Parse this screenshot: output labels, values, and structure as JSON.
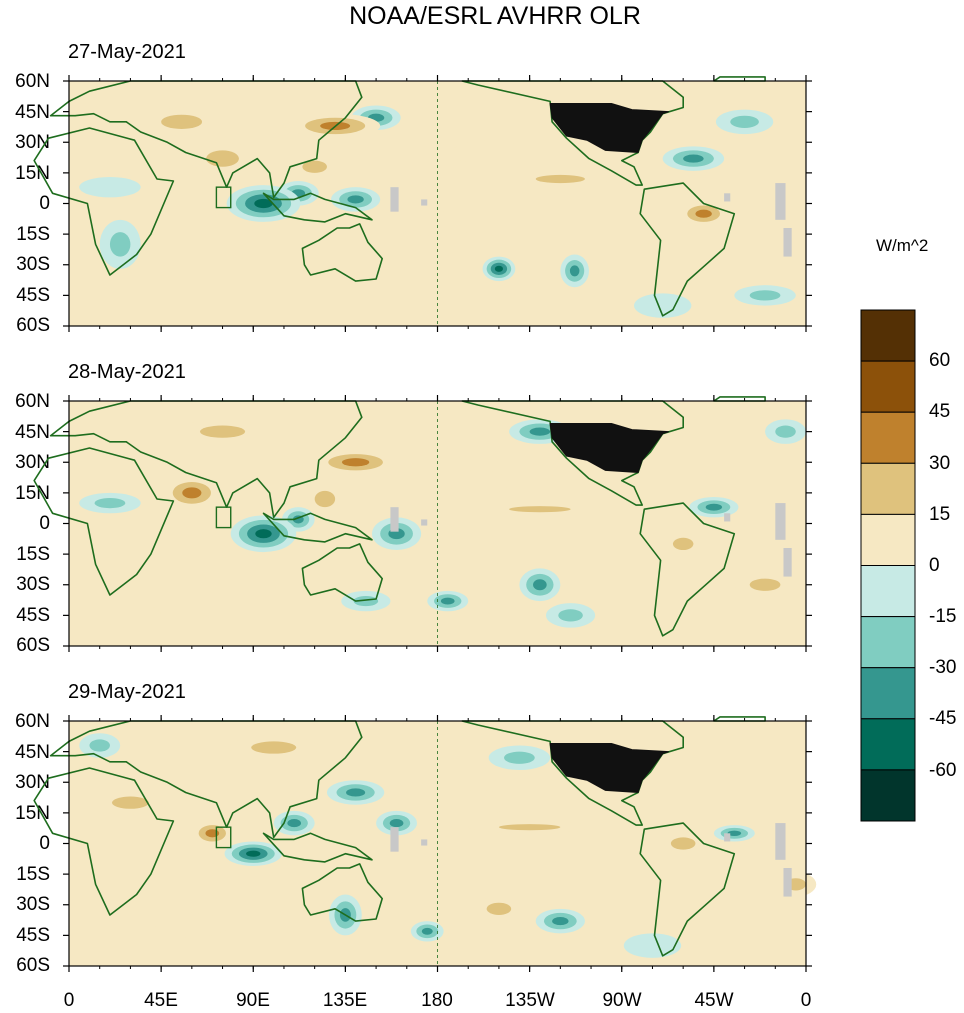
{
  "chart_data": {
    "type": "heatmap",
    "title": "NOAA/ESRL AVHRR OLR",
    "units": "W/m^2",
    "colorbar": {
      "levels": [
        -75,
        -60,
        -45,
        -30,
        -15,
        0,
        15,
        30,
        45,
        60,
        75
      ],
      "tick_labels": [
        "-60",
        "-45",
        "-30",
        "-15",
        "0",
        "15",
        "30",
        "45",
        "60"
      ],
      "colors": [
        "#01352c",
        "#016c59",
        "#35978f",
        "#80cdc1",
        "#c7eae5",
        "#f6e8c3",
        "#dfc27d",
        "#bf812d",
        "#8c510a",
        "#543005"
      ]
    },
    "y_tick_labels": [
      "60N",
      "45N",
      "30N",
      "15N",
      "0",
      "15S",
      "30S",
      "45S",
      "60S"
    ],
    "x_tick_labels": [
      "0",
      "45E",
      "90E",
      "135E",
      "180",
      "135W",
      "90W",
      "45W",
      "0"
    ],
    "xlim": [
      0,
      360
    ],
    "ylim": [
      -60,
      60
    ],
    "panels": [
      {
        "date": "27-May-2021",
        "anomalies": [
          {
            "lon": 55,
            "lat": 40,
            "rx": 20,
            "ry": 7,
            "v": 30
          },
          {
            "lon": 130,
            "lat": 38,
            "rx": 22,
            "ry": 6,
            "v": 36
          },
          {
            "lon": 75,
            "lat": 22,
            "rx": 16,
            "ry": 8,
            "v": 26
          },
          {
            "lon": 120,
            "lat": 18,
            "rx": 12,
            "ry": 6,
            "v": 30
          },
          {
            "lon": 95,
            "lat": 0,
            "rx": 18,
            "ry": 9,
            "v": -58
          },
          {
            "lon": 112,
            "lat": 5,
            "rx": 10,
            "ry": 6,
            "v": -40
          },
          {
            "lon": 140,
            "lat": 2,
            "rx": 12,
            "ry": 6,
            "v": -32
          },
          {
            "lon": 25,
            "lat": -20,
            "rx": 10,
            "ry": 12,
            "v": -16
          },
          {
            "lon": 20,
            "lat": 8,
            "rx": 15,
            "ry": 5,
            "v": -12
          },
          {
            "lon": 150,
            "lat": 42,
            "rx": 12,
            "ry": 6,
            "v": -32
          },
          {
            "lon": 210,
            "lat": -32,
            "rx": 8,
            "ry": 6,
            "v": -55
          },
          {
            "lon": 247,
            "lat": -33,
            "rx": 7,
            "ry": 8,
            "v": -45
          },
          {
            "lon": 240,
            "lat": 12,
            "rx": 24,
            "ry": 4,
            "v": 24
          },
          {
            "lon": 310,
            "lat": -5,
            "rx": 12,
            "ry": 6,
            "v": 32
          },
          {
            "lon": 305,
            "lat": 22,
            "rx": 15,
            "ry": 6,
            "v": -38
          },
          {
            "lon": 330,
            "lat": 40,
            "rx": 14,
            "ry": 6,
            "v": -30
          },
          {
            "lon": 205,
            "lat": 25,
            "rx": 18,
            "ry": 6,
            "v": 12
          },
          {
            "lon": 180,
            "lat": -10,
            "rx": 20,
            "ry": 6,
            "v": 8
          },
          {
            "lon": 340,
            "lat": -45,
            "rx": 15,
            "ry": 5,
            "v": -16
          },
          {
            "lon": 290,
            "lat": -50,
            "rx": 14,
            "ry": 6,
            "v": -10
          }
        ]
      },
      {
        "date": "28-May-2021",
        "anomalies": [
          {
            "lon": 75,
            "lat": 45,
            "rx": 22,
            "ry": 6,
            "v": 28
          },
          {
            "lon": 140,
            "lat": 30,
            "rx": 20,
            "ry": 6,
            "v": 36
          },
          {
            "lon": 60,
            "lat": 15,
            "rx": 14,
            "ry": 8,
            "v": 40
          },
          {
            "lon": 125,
            "lat": 12,
            "rx": 10,
            "ry": 8,
            "v": 30
          },
          {
            "lon": 95,
            "lat": -5,
            "rx": 16,
            "ry": 9,
            "v": -60
          },
          {
            "lon": 112,
            "lat": 2,
            "rx": 8,
            "ry": 6,
            "v": -44
          },
          {
            "lon": 160,
            "lat": -5,
            "rx": 12,
            "ry": 8,
            "v": -34
          },
          {
            "lon": 185,
            "lat": -38,
            "rx": 10,
            "ry": 5,
            "v": -45
          },
          {
            "lon": 145,
            "lat": -38,
            "rx": 12,
            "ry": 5,
            "v": -28
          },
          {
            "lon": 230,
            "lat": 45,
            "rx": 15,
            "ry": 6,
            "v": -38
          },
          {
            "lon": 230,
            "lat": -30,
            "rx": 10,
            "ry": 8,
            "v": -42
          },
          {
            "lon": 245,
            "lat": -45,
            "rx": 12,
            "ry": 6,
            "v": -30
          },
          {
            "lon": 230,
            "lat": 7,
            "rx": 30,
            "ry": 3,
            "v": 26
          },
          {
            "lon": 315,
            "lat": 8,
            "rx": 12,
            "ry": 5,
            "v": -34
          },
          {
            "lon": 300,
            "lat": -10,
            "rx": 10,
            "ry": 6,
            "v": 30
          },
          {
            "lon": 340,
            "lat": -30,
            "rx": 15,
            "ry": 6,
            "v": 22
          },
          {
            "lon": 30,
            "lat": -45,
            "rx": 15,
            "ry": 6,
            "v": 14
          },
          {
            "lon": 200,
            "lat": 20,
            "rx": 15,
            "ry": 6,
            "v": 10
          },
          {
            "lon": 20,
            "lat": 10,
            "rx": 15,
            "ry": 5,
            "v": -18
          },
          {
            "lon": 350,
            "lat": 45,
            "rx": 10,
            "ry": 6,
            "v": -24
          }
        ]
      },
      {
        "date": "29-May-2021",
        "anomalies": [
          {
            "lon": 100,
            "lat": 47,
            "rx": 22,
            "ry": 6,
            "v": 30
          },
          {
            "lon": 140,
            "lat": 25,
            "rx": 14,
            "ry": 6,
            "v": -42
          },
          {
            "lon": 70,
            "lat": 5,
            "rx": 10,
            "ry": 6,
            "v": 44
          },
          {
            "lon": 90,
            "lat": -5,
            "rx": 14,
            "ry": 6,
            "v": -58
          },
          {
            "lon": 110,
            "lat": 10,
            "rx": 10,
            "ry": 6,
            "v": -42
          },
          {
            "lon": 160,
            "lat": 10,
            "rx": 10,
            "ry": 6,
            "v": -38
          },
          {
            "lon": 135,
            "lat": -35,
            "rx": 8,
            "ry": 10,
            "v": -38
          },
          {
            "lon": 175,
            "lat": -43,
            "rx": 8,
            "ry": 5,
            "v": -45
          },
          {
            "lon": 220,
            "lat": 42,
            "rx": 15,
            "ry": 6,
            "v": -30
          },
          {
            "lon": 210,
            "lat": -32,
            "rx": 12,
            "ry": 6,
            "v": 30
          },
          {
            "lon": 240,
            "lat": -38,
            "rx": 12,
            "ry": 6,
            "v": -34
          },
          {
            "lon": 225,
            "lat": 8,
            "rx": 30,
            "ry": 3,
            "v": 26
          },
          {
            "lon": 300,
            "lat": 0,
            "rx": 12,
            "ry": 6,
            "v": 28
          },
          {
            "lon": 325,
            "lat": 5,
            "rx": 10,
            "ry": 4,
            "v": -44
          },
          {
            "lon": 355,
            "lat": -20,
            "rx": 10,
            "ry": 6,
            "v": 30
          },
          {
            "lon": 30,
            "lat": 20,
            "rx": 18,
            "ry": 6,
            "v": 16
          },
          {
            "lon": 60,
            "lat": -40,
            "rx": 18,
            "ry": 6,
            "v": 12
          },
          {
            "lon": 200,
            "lat": 20,
            "rx": 15,
            "ry": 6,
            "v": 12
          },
          {
            "lon": 15,
            "lat": 48,
            "rx": 10,
            "ry": 6,
            "v": -20
          },
          {
            "lon": 285,
            "lat": -50,
            "rx": 14,
            "ry": 6,
            "v": -12
          }
        ]
      }
    ]
  }
}
